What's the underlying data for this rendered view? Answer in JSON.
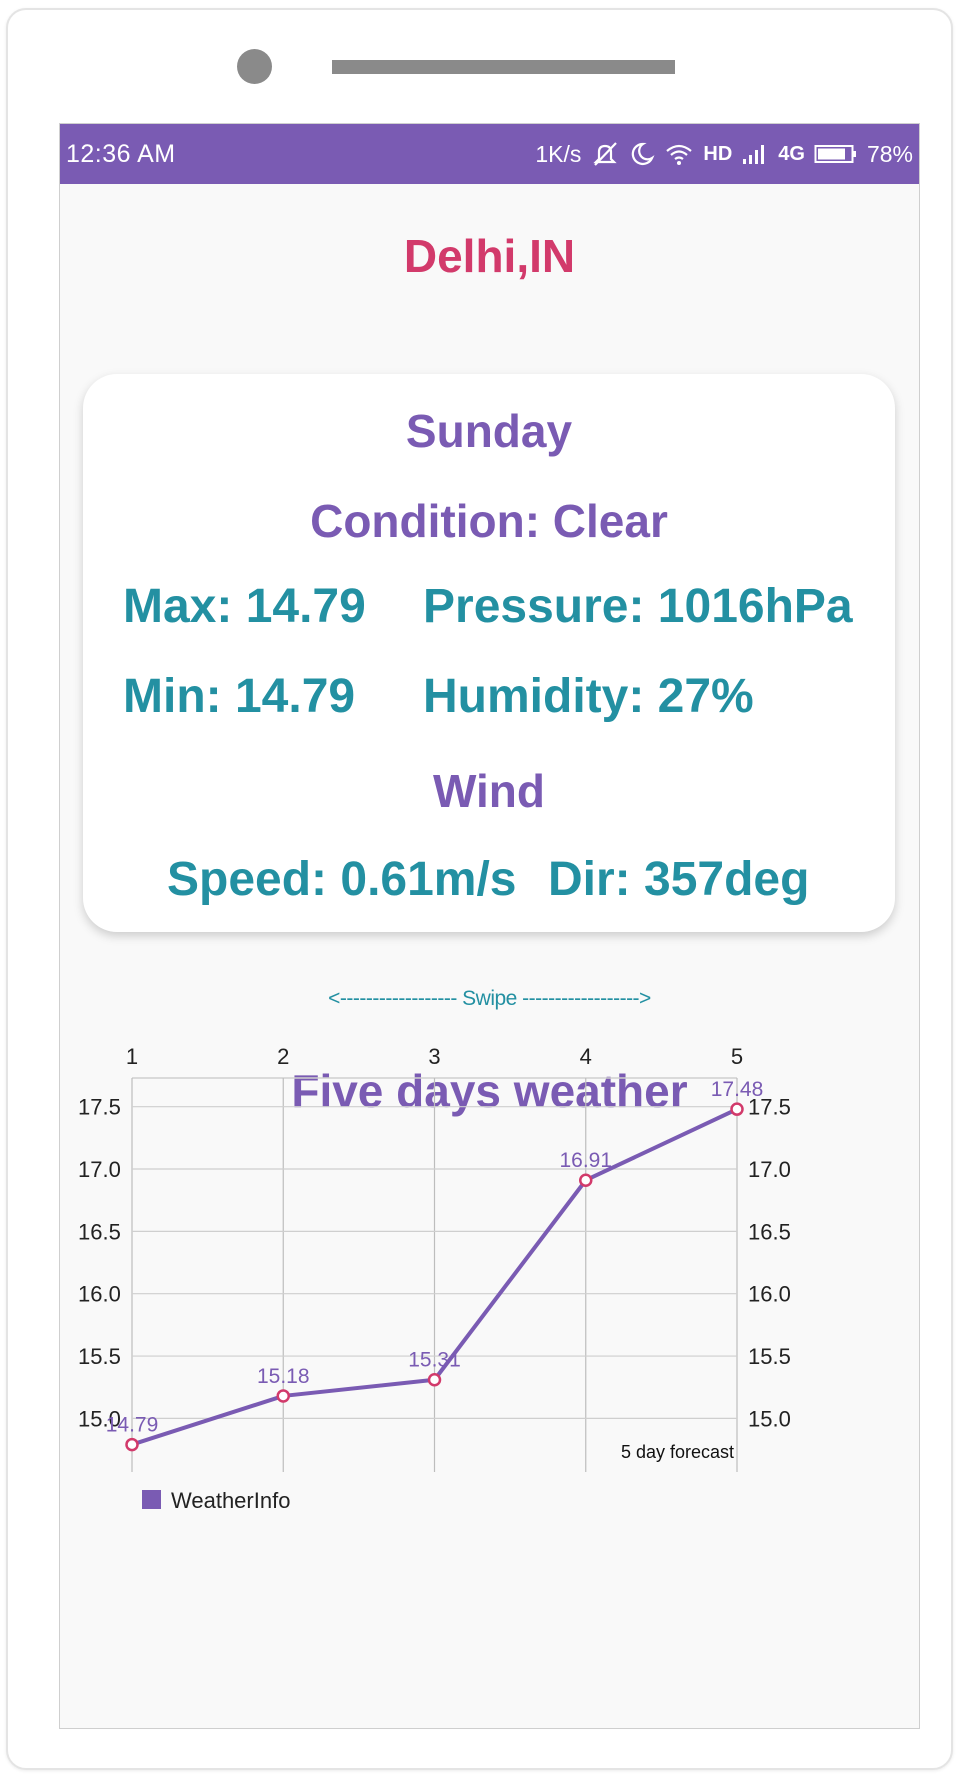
{
  "status": {
    "time": "12:36 AM",
    "net_speed": "1K/s",
    "hd": "HD",
    "network": "4G",
    "battery": "78%"
  },
  "city": "Delhi,IN",
  "today": {
    "day": "Sunday",
    "condition": "Condition: Clear",
    "max": "Max: 14.79",
    "pressure": "Pressure: 1016hPa",
    "min": "Min: 14.79",
    "humidity": "Humidity: 27%",
    "wind_title": "Wind",
    "speed": "Speed: 0.61m/s",
    "dir": "Dir: 357deg"
  },
  "swipe_hint": "<------------------ Swipe ------------------>",
  "section_title": "Five days weather",
  "colors": {
    "accent_purple": "#7a5bb3",
    "city_red": "#d23a6b",
    "teal": "#2390a2",
    "point_marker": "#d23a6b"
  },
  "icons": [
    "mute-icon",
    "moon-icon",
    "wifi-icon",
    "signal-icon",
    "battery-icon"
  ],
  "chart_data": {
    "type": "line",
    "x": [
      1,
      2,
      3,
      4,
      5
    ],
    "x_tick_labels": [
      "1",
      "2",
      "3",
      "4",
      "5"
    ],
    "y_tick_labels": [
      "15.0",
      "15.5",
      "16.0",
      "16.5",
      "17.0",
      "17.5"
    ],
    "series": [
      {
        "name": "WeatherInfo",
        "values": [
          14.79,
          15.18,
          15.31,
          16.91,
          17.48
        ],
        "labels": [
          "14.79",
          "15.18",
          "15.31",
          "16.91",
          "17.48"
        ]
      }
    ],
    "ylim": [
      14.57,
      17.73
    ],
    "xlim": [
      1,
      5
    ],
    "grid": true,
    "x_axis_position": "top",
    "y_axes": "left-and-right",
    "description": "5 day forecast",
    "legend_position": "bottom-left"
  }
}
